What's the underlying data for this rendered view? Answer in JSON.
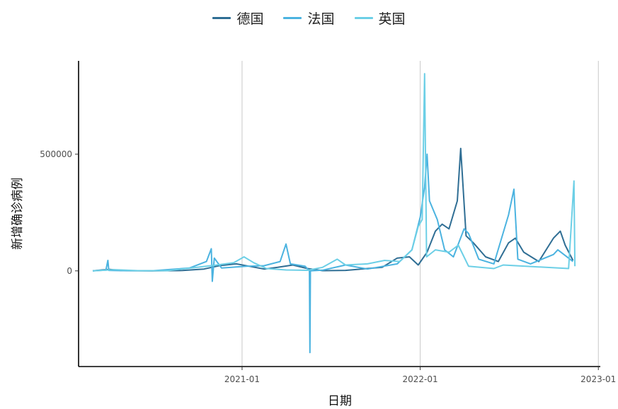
{
  "chart_data": {
    "type": "line",
    "title": "",
    "xlabel": "日期",
    "ylabel": "新增确诊病例",
    "legend_position": "top",
    "grid": "vertical-major",
    "x_ticks": [
      "2021-01",
      "2022-01",
      "2023-01"
    ],
    "y_ticks": [
      0,
      500000
    ],
    "xlim": [
      "2020-02-01",
      "2023-01-05"
    ],
    "ylim": [
      -410000,
      900000
    ],
    "series": [
      {
        "name": "德国",
        "color": "#2f6e94",
        "points": [
          [
            "2020-03-01",
            0
          ],
          [
            "2020-03-20",
            4000
          ],
          [
            "2020-04-05",
            6000
          ],
          [
            "2020-05-01",
            1000
          ],
          [
            "2020-07-01",
            400
          ],
          [
            "2020-09-01",
            1500
          ],
          [
            "2020-10-15",
            8000
          ],
          [
            "2020-11-15",
            22000
          ],
          [
            "2020-12-20",
            30000
          ],
          [
            "2021-01-15",
            20000
          ],
          [
            "2021-02-15",
            8000
          ],
          [
            "2021-03-15",
            15000
          ],
          [
            "2021-04-15",
            25000
          ],
          [
            "2021-05-15",
            10000
          ],
          [
            "2021-06-15",
            800
          ],
          [
            "2021-08-01",
            2000
          ],
          [
            "2021-09-15",
            10000
          ],
          [
            "2021-10-15",
            15000
          ],
          [
            "2021-11-15",
            55000
          ],
          [
            "2021-12-10",
            60000
          ],
          [
            "2021-12-28",
            25000
          ],
          [
            "2022-01-15",
            80000
          ],
          [
            "2022-02-01",
            170000
          ],
          [
            "2022-02-15",
            200000
          ],
          [
            "2022-03-01",
            180000
          ],
          [
            "2022-03-18",
            300000
          ],
          [
            "2022-03-25",
            525000
          ],
          [
            "2022-04-05",
            150000
          ],
          [
            "2022-04-20",
            120000
          ],
          [
            "2022-05-15",
            60000
          ],
          [
            "2022-06-10",
            40000
          ],
          [
            "2022-07-01",
            120000
          ],
          [
            "2022-07-15",
            140000
          ],
          [
            "2022-08-01",
            80000
          ],
          [
            "2022-09-01",
            40000
          ],
          [
            "2022-10-01",
            140000
          ],
          [
            "2022-10-15",
            170000
          ],
          [
            "2022-10-25",
            110000
          ],
          [
            "2022-11-10",
            45000
          ]
        ]
      },
      {
        "name": "法国",
        "color": "#4bb3e0",
        "points": [
          [
            "2020-03-01",
            0
          ],
          [
            "2020-03-28",
            3000
          ],
          [
            "2020-04-01",
            45000
          ],
          [
            "2020-04-03",
            2000
          ],
          [
            "2020-05-01",
            1000
          ],
          [
            "2020-07-01",
            600
          ],
          [
            "2020-09-15",
            12000
          ],
          [
            "2020-10-20",
            40000
          ],
          [
            "2020-10-30",
            95000
          ],
          [
            "2020-11-01",
            -45000
          ],
          [
            "2020-11-05",
            55000
          ],
          [
            "2020-11-20",
            12000
          ],
          [
            "2021-01-10",
            20000
          ],
          [
            "2021-02-15",
            22000
          ],
          [
            "2021-03-20",
            40000
          ],
          [
            "2021-04-01",
            115000
          ],
          [
            "2021-04-10",
            30000
          ],
          [
            "2021-05-10",
            20000
          ],
          [
            "2021-05-19",
            0
          ],
          [
            "2021-05-20",
            -350000
          ],
          [
            "2021-05-21",
            0
          ],
          [
            "2021-06-15",
            3000
          ],
          [
            "2021-08-01",
            25000
          ],
          [
            "2021-09-15",
            8000
          ],
          [
            "2021-11-15",
            30000
          ],
          [
            "2021-12-15",
            90000
          ],
          [
            "2022-01-01",
            230000
          ],
          [
            "2022-01-10",
            360000
          ],
          [
            "2022-01-15",
            500000
          ],
          [
            "2022-01-20",
            300000
          ],
          [
            "2022-02-05",
            220000
          ],
          [
            "2022-02-20",
            90000
          ],
          [
            "2022-03-10",
            60000
          ],
          [
            "2022-04-01",
            180000
          ],
          [
            "2022-04-10",
            160000
          ],
          [
            "2022-05-01",
            50000
          ],
          [
            "2022-06-01",
            30000
          ],
          [
            "2022-07-01",
            240000
          ],
          [
            "2022-07-12",
            350000
          ],
          [
            "2022-07-20",
            50000
          ],
          [
            "2022-08-15",
            30000
          ],
          [
            "2022-10-01",
            70000
          ],
          [
            "2022-10-10",
            90000
          ],
          [
            "2022-11-10",
            40000
          ]
        ]
      },
      {
        "name": "英国",
        "color": "#6ccfe6",
        "points": [
          [
            "2020-03-01",
            0
          ],
          [
            "2020-04-15",
            5000
          ],
          [
            "2020-06-01",
            1000
          ],
          [
            "2020-08-01",
            1000
          ],
          [
            "2020-10-01",
            15000
          ],
          [
            "2020-11-10",
            25000
          ],
          [
            "2020-12-15",
            35000
          ],
          [
            "2021-01-05",
            60000
          ],
          [
            "2021-01-25",
            35000
          ],
          [
            "2021-02-20",
            10000
          ],
          [
            "2021-04-01",
            4000
          ],
          [
            "2021-05-15",
            2500
          ],
          [
            "2021-06-15",
            15000
          ],
          [
            "2021-07-15",
            50000
          ],
          [
            "2021-08-01",
            25000
          ],
          [
            "2021-09-15",
            30000
          ],
          [
            "2021-10-20",
            45000
          ],
          [
            "2021-11-20",
            40000
          ],
          [
            "2021-12-15",
            90000
          ],
          [
            "2021-12-28",
            190000
          ],
          [
            "2022-01-05",
            220000
          ],
          [
            "2022-01-10",
            845000
          ],
          [
            "2022-01-14",
            60000
          ],
          [
            "2022-02-01",
            90000
          ],
          [
            "2022-03-01",
            80000
          ],
          [
            "2022-03-20",
            110000
          ],
          [
            "2022-04-10",
            20000
          ],
          [
            "2022-06-01",
            10000
          ],
          [
            "2022-06-20",
            25000
          ],
          [
            "2022-11-01",
            10000
          ],
          [
            "2022-11-12",
            385000
          ],
          [
            "2022-11-14",
            20000
          ]
        ]
      }
    ]
  }
}
